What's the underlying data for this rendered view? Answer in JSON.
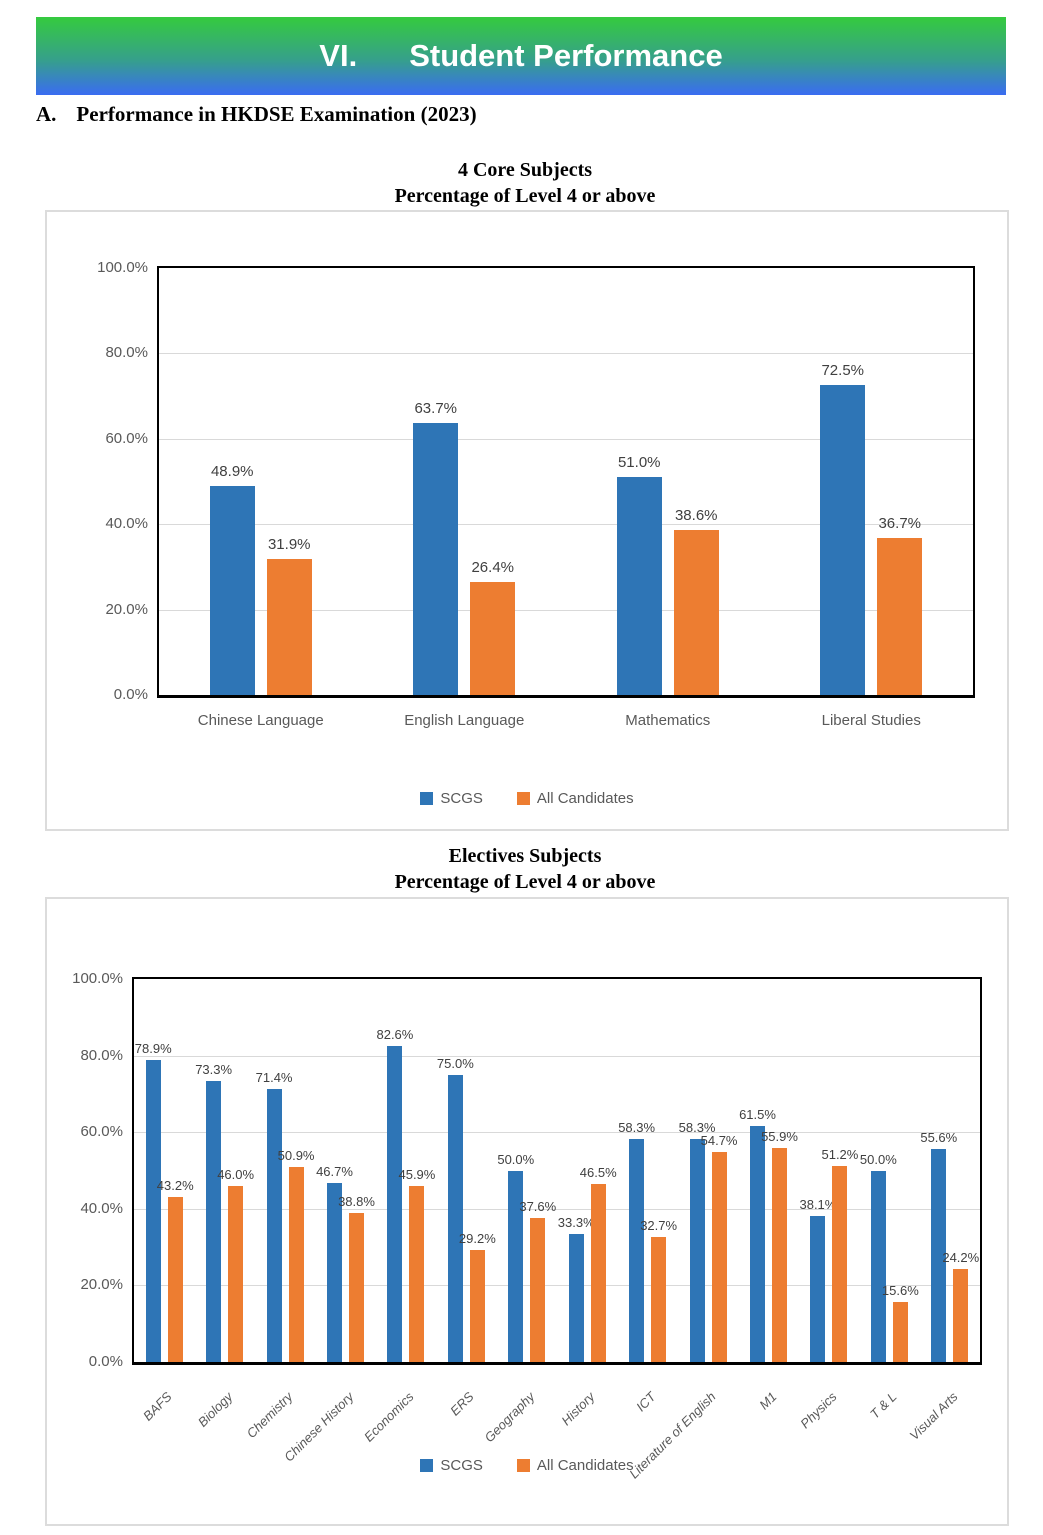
{
  "banner": {
    "number": "VI.",
    "title": "Student Performance"
  },
  "section_heading": {
    "label": "A.",
    "text": "Performance in HKDSE Examination (2023)"
  },
  "colors": {
    "banner_gradient_top": "#35cb3e",
    "banner_gradient_bottom": "#3a6cf2",
    "scgs_blue": "#2E75B6",
    "all_candidates_orange": "#ED7D31",
    "axis_text": "#595959",
    "data_label_text": "#404040",
    "gridline": "#D9D9D9"
  },
  "chart_data": [
    {
      "type": "bar",
      "title": "4 Core Subjects",
      "subtitle": "Percentage of Level 4 or above",
      "categories": [
        "Chinese Language",
        "English Language",
        "Mathematics",
        "Liberal Studies"
      ],
      "series": [
        {
          "name": "SCGS",
          "color": "#2E75B6",
          "values": [
            48.9,
            63.7,
            51.0,
            72.5
          ]
        },
        {
          "name": "All Candidates",
          "color": "#ED7D31",
          "values": [
            31.9,
            26.4,
            38.6,
            36.7
          ]
        }
      ],
      "ylim": [
        0,
        100
      ],
      "yticks": [
        "0.0%",
        "20.0%",
        "40.0%",
        "60.0%",
        "80.0%",
        "100.0%"
      ],
      "grid": true,
      "legend_position": "bottom",
      "value_suffix": "%"
    },
    {
      "type": "bar",
      "title": "Electives Subjects",
      "subtitle": "Percentage of Level 4 or above",
      "categories": [
        "BAFS",
        "Biology",
        "Chemistry",
        "Chinese History",
        "Economics",
        "ERS",
        "Geography",
        "History",
        "ICT",
        "Literature of English",
        "M1",
        "Physics",
        "T & L",
        "Visual Arts"
      ],
      "series": [
        {
          "name": "SCGS",
          "color": "#2E75B6",
          "values": [
            78.9,
            73.3,
            71.4,
            46.7,
            82.6,
            75.0,
            50.0,
            33.3,
            58.3,
            58.3,
            61.5,
            38.1,
            50.0,
            55.6
          ]
        },
        {
          "name": "All Candidates",
          "color": "#ED7D31",
          "values": [
            43.2,
            46.0,
            50.9,
            38.8,
            45.9,
            29.2,
            37.6,
            46.5,
            32.7,
            54.7,
            55.9,
            51.2,
            15.6,
            24.2
          ]
        }
      ],
      "ylim": [
        0,
        100
      ],
      "yticks": [
        "0.0%",
        "20.0%",
        "40.0%",
        "60.0%",
        "80.0%",
        "100.0%"
      ],
      "grid": true,
      "legend_position": "bottom",
      "value_suffix": "%"
    }
  ]
}
